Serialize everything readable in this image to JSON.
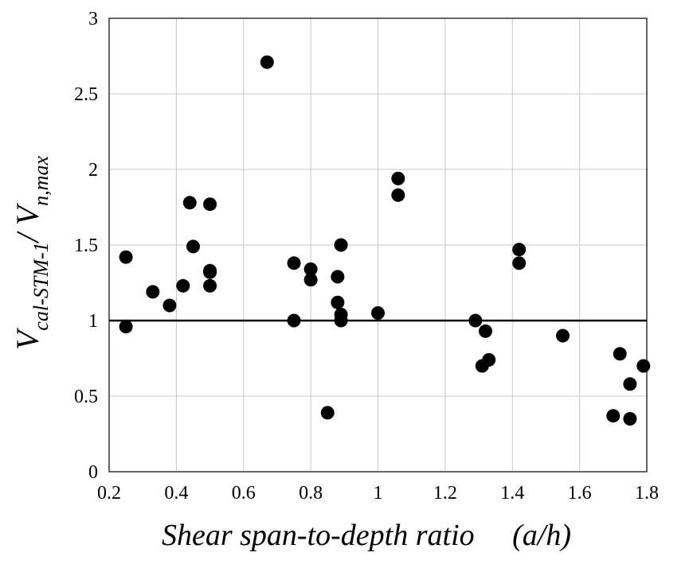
{
  "chart_data": {
    "type": "scatter",
    "title": "",
    "xlabel": "Shear span-to-depth ratio     (a/h)",
    "ylabel": {
      "main_1": "V",
      "sub_1": "cal-STM-1",
      "sep": "/ ",
      "main_2": "V",
      "sub_2": "n,max"
    },
    "xlim": [
      0.2,
      1.8
    ],
    "ylim": [
      0,
      3
    ],
    "xticks": [
      0.2,
      0.4,
      0.6,
      0.8,
      1.0,
      1.2,
      1.4,
      1.6,
      1.8
    ],
    "xtick_labels": [
      "0.2",
      "0.4",
      "0.6",
      "0.8",
      "1",
      "1.2",
      "1.4",
      "1.6",
      "1.8"
    ],
    "yticks": [
      0,
      0.5,
      1.0,
      1.5,
      2.0,
      2.5,
      3.0
    ],
    "ytick_labels": [
      "0",
      "0.5",
      "1",
      "1.5",
      "2",
      "2.5",
      "3"
    ],
    "grid": true,
    "reference_line_y": 1.0,
    "marker_color": "#000000",
    "points": [
      {
        "x": 0.25,
        "y": 1.42
      },
      {
        "x": 0.25,
        "y": 0.96
      },
      {
        "x": 0.33,
        "y": 1.19
      },
      {
        "x": 0.38,
        "y": 1.1
      },
      {
        "x": 0.42,
        "y": 1.23
      },
      {
        "x": 0.44,
        "y": 1.78
      },
      {
        "x": 0.45,
        "y": 1.49
      },
      {
        "x": 0.5,
        "y": 1.77
      },
      {
        "x": 0.5,
        "y": 1.33
      },
      {
        "x": 0.5,
        "y": 1.32
      },
      {
        "x": 0.5,
        "y": 1.23
      },
      {
        "x": 0.67,
        "y": 2.71
      },
      {
        "x": 0.75,
        "y": 1.38
      },
      {
        "x": 0.75,
        "y": 1.0
      },
      {
        "x": 0.8,
        "y": 1.34
      },
      {
        "x": 0.8,
        "y": 1.27
      },
      {
        "x": 0.85,
        "y": 0.39
      },
      {
        "x": 0.88,
        "y": 1.29
      },
      {
        "x": 0.88,
        "y": 1.12
      },
      {
        "x": 0.89,
        "y": 1.5
      },
      {
        "x": 0.89,
        "y": 1.04
      },
      {
        "x": 0.89,
        "y": 1.0
      },
      {
        "x": 1.0,
        "y": 1.05
      },
      {
        "x": 1.06,
        "y": 1.94
      },
      {
        "x": 1.06,
        "y": 1.83
      },
      {
        "x": 1.29,
        "y": 1.0
      },
      {
        "x": 1.31,
        "y": 0.7
      },
      {
        "x": 1.32,
        "y": 0.93
      },
      {
        "x": 1.33,
        "y": 0.74
      },
      {
        "x": 1.42,
        "y": 1.47
      },
      {
        "x": 1.42,
        "y": 1.38
      },
      {
        "x": 1.55,
        "y": 0.9
      },
      {
        "x": 1.7,
        "y": 0.37
      },
      {
        "x": 1.72,
        "y": 0.78
      },
      {
        "x": 1.75,
        "y": 0.58
      },
      {
        "x": 1.75,
        "y": 0.35
      },
      {
        "x": 1.79,
        "y": 0.7
      }
    ]
  }
}
